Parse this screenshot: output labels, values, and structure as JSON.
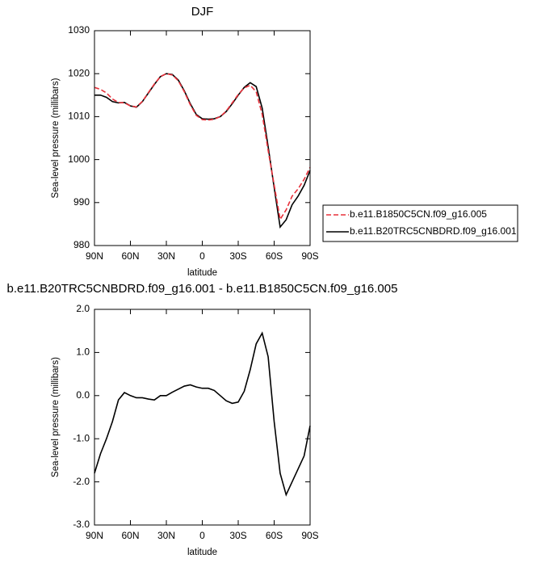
{
  "chart_data": [
    {
      "type": "line",
      "title": "DJF",
      "x_label": "latitude",
      "y_label": "Sea-level pressure (millibars)",
      "x": [
        90,
        85,
        80,
        75,
        70,
        65,
        60,
        55,
        50,
        45,
        40,
        35,
        30,
        25,
        20,
        15,
        10,
        5,
        0,
        -5,
        -10,
        -15,
        -20,
        -25,
        -30,
        -35,
        -40,
        -45,
        -50,
        -55,
        -60,
        -65,
        -70,
        -75,
        -80,
        -85,
        -90
      ],
      "series": [
        {
          "name": "b.e11.B1850C5CN.f09_g16.005",
          "color": "#e8303a",
          "dash": true,
          "values": [
            1016.8,
            1016.35,
            1015.5,
            1014.1,
            1013.3,
            1013.2,
            1012.5,
            1012.25,
            1013.55,
            1015.6,
            1017.6,
            1019.3,
            1020.0,
            1019.7,
            1018.35,
            1015.8,
            1012.75,
            1010.3,
            1009.3,
            1009.2,
            1009.4,
            1010.0,
            1011.3,
            1013.2,
            1015.15,
            1016.7,
            1017.3,
            1015.8,
            1010.55,
            1002.1,
            994.1,
            986.1,
            988.3,
            991.5,
            993.2,
            995.4,
            998.2
          ]
        },
        {
          "name": "b.e11.B20TRC5CNBDRD.f09_g16.001",
          "color": "#000000",
          "dash": false,
          "values": [
            1015.0,
            1015.0,
            1014.5,
            1013.5,
            1013.2,
            1013.3,
            1012.5,
            1012.2,
            1013.5,
            1015.5,
            1017.5,
            1019.3,
            1020.0,
            1019.8,
            1018.5,
            1016.0,
            1013.0,
            1010.5,
            1009.5,
            1009.4,
            1009.5,
            1010.0,
            1011.2,
            1013.0,
            1015.0,
            1016.8,
            1017.9,
            1017.0,
            1012.0,
            1003.0,
            993.5,
            984.3,
            986.0,
            989.5,
            991.5,
            994.0,
            997.5
          ]
        }
      ],
      "xlim": [
        90,
        -90
      ],
      "xticks": [
        {
          "value": 90,
          "label": "90N"
        },
        {
          "value": 60,
          "label": "60N"
        },
        {
          "value": 30,
          "label": "30N"
        },
        0,
        {
          "value": -30,
          "label": "30S"
        },
        {
          "value": -60,
          "label": "60S"
        },
        {
          "value": -90,
          "label": "90S"
        }
      ],
      "ylim": [
        980,
        1030
      ],
      "yticks": [
        980,
        990,
        1000,
        1010,
        1020,
        1030
      ],
      "legend": "right"
    },
    {
      "type": "line",
      "title": "b.e11.B20TRC5CNBDRD.f09_g16.001 - b.e11.B1850C5CN.f09_g16.005",
      "x_label": "latitude",
      "y_label": "Sea-level pressure (millibars)",
      "x": [
        90,
        85,
        80,
        75,
        70,
        65,
        60,
        55,
        50,
        45,
        40,
        35,
        30,
        25,
        20,
        15,
        10,
        5,
        0,
        -5,
        -10,
        -15,
        -20,
        -25,
        -30,
        -35,
        -40,
        -45,
        -50,
        -55,
        -60,
        -65,
        -70,
        -75,
        -80,
        -85,
        -90
      ],
      "values": [
        -1.8,
        -1.35,
        -1.0,
        -0.6,
        -0.1,
        0.07,
        0.0,
        -0.05,
        -0.05,
        -0.08,
        -0.1,
        0.0,
        0.0,
        0.08,
        0.15,
        0.22,
        0.25,
        0.2,
        0.17,
        0.17,
        0.12,
        0.0,
        -0.12,
        -0.18,
        -0.15,
        0.1,
        0.6,
        1.2,
        1.45,
        0.9,
        -0.6,
        -1.8,
        -2.3,
        -2.0,
        -1.7,
        -1.4,
        -0.7
      ],
      "color": "#000000",
      "xlim": [
        90,
        -90
      ],
      "xticks": [
        {
          "value": 90,
          "label": "90N"
        },
        {
          "value": 60,
          "label": "60N"
        },
        {
          "value": 30,
          "label": "30N"
        },
        0,
        {
          "value": -30,
          "label": "30S"
        },
        {
          "value": -60,
          "label": "60S"
        },
        {
          "value": -90,
          "label": "90S"
        }
      ],
      "ylim": [
        -3,
        2
      ],
      "yticks": [
        {
          "value": -3,
          "label": "-3.0"
        },
        {
          "value": -2,
          "label": "-2.0"
        },
        {
          "value": -1,
          "label": "-1.0"
        },
        {
          "value": 0,
          "label": "0.0"
        },
        {
          "value": 1,
          "label": "1.0"
        },
        {
          "value": 2,
          "label": "2.0"
        }
      ]
    }
  ]
}
